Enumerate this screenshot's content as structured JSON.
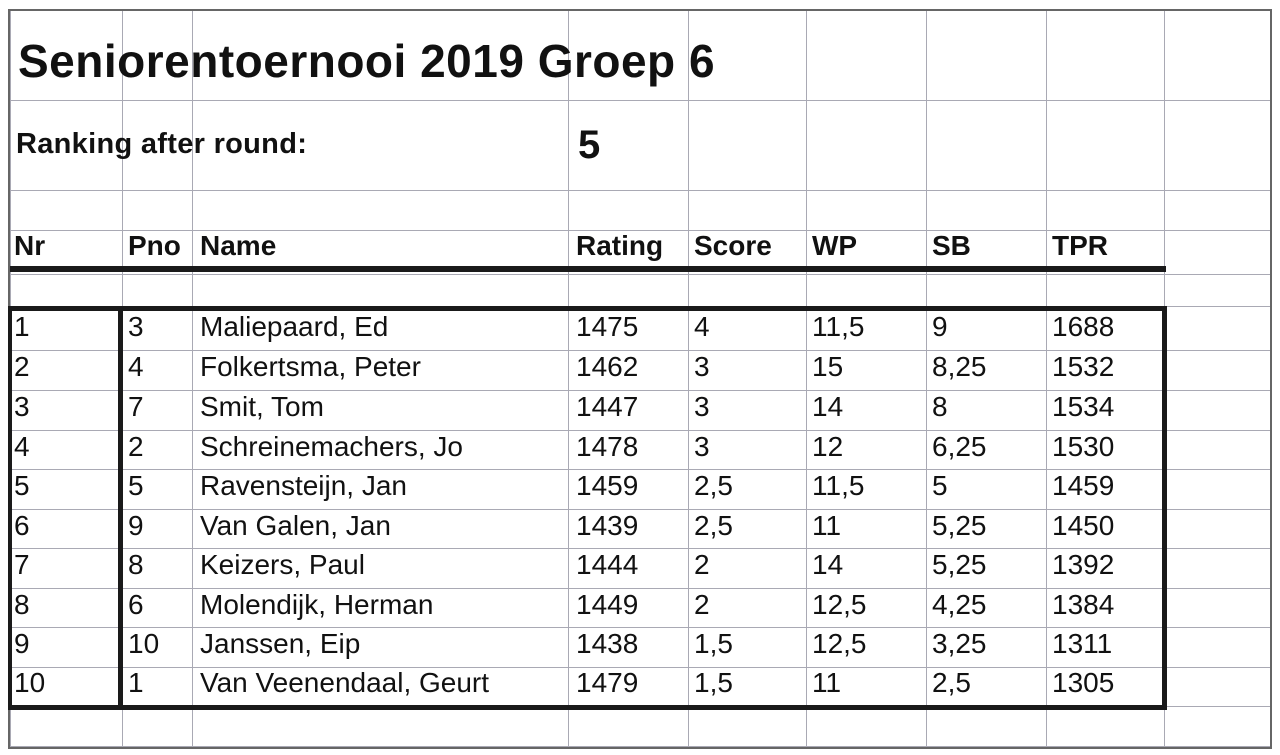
{
  "title": "Seniorentoernooi 2019 Groep 6",
  "subtitle": "Ranking after round:",
  "round": "5",
  "columns": [
    "Nr",
    "Pno",
    "Name",
    "Rating",
    "Score",
    "WP",
    "SB",
    "TPR"
  ],
  "rows": [
    {
      "nr": "1",
      "pno": "3",
      "name": "Maliepaard, Ed",
      "rating": "1475",
      "score": "4",
      "wp": "11,5",
      "sb": "9",
      "tpr": "1688"
    },
    {
      "nr": "2",
      "pno": "4",
      "name": "Folkertsma, Peter",
      "rating": "1462",
      "score": "3",
      "wp": "15",
      "sb": "8,25",
      "tpr": "1532"
    },
    {
      "nr": "3",
      "pno": "7",
      "name": "Smit, Tom",
      "rating": "1447",
      "score": "3",
      "wp": "14",
      "sb": "8",
      "tpr": "1534"
    },
    {
      "nr": "4",
      "pno": "2",
      "name": "Schreinemachers, Jo",
      "rating": "1478",
      "score": "3",
      "wp": "12",
      "sb": "6,25",
      "tpr": "1530"
    },
    {
      "nr": "5",
      "pno": "5",
      "name": "Ravensteijn, Jan",
      "rating": "1459",
      "score": "2,5",
      "wp": "11,5",
      "sb": "5",
      "tpr": "1459"
    },
    {
      "nr": "6",
      "pno": "9",
      "name": "Van Galen, Jan",
      "rating": "1439",
      "score": "2,5",
      "wp": "11",
      "sb": "5,25",
      "tpr": "1450"
    },
    {
      "nr": "7",
      "pno": "8",
      "name": "Keizers, Paul",
      "rating": "1444",
      "score": "2",
      "wp": "14",
      "sb": "5,25",
      "tpr": "1392"
    },
    {
      "nr": "8",
      "pno": "6",
      "name": "Molendijk, Herman",
      "rating": "1449",
      "score": "2",
      "wp": "12,5",
      "sb": "4,25",
      "tpr": "1384"
    },
    {
      "nr": "9",
      "pno": "10",
      "name": "Janssen, Eip",
      "rating": "1438",
      "score": "1,5",
      "wp": "12,5",
      "sb": "3,25",
      "tpr": "1311"
    },
    {
      "nr": "10",
      "pno": "1",
      "name": "Van Veenendaal, Geurt",
      "rating": "1479",
      "score": "1,5",
      "wp": "11",
      "sb": "2,5",
      "tpr": "1305"
    }
  ]
}
